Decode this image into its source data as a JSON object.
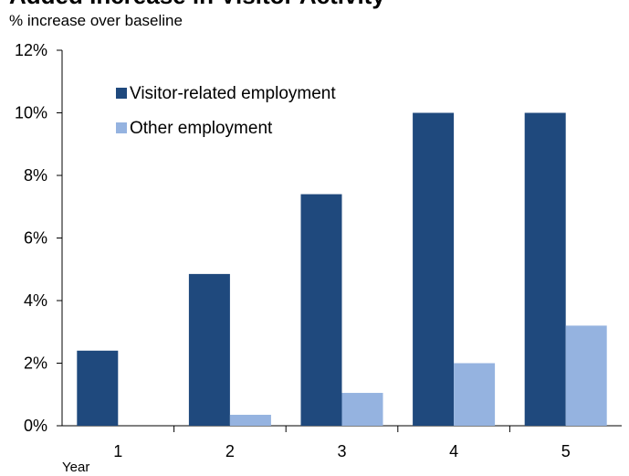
{
  "chart_data": {
    "type": "bar",
    "title": "Added Increase in Visitor Activity",
    "subtitle": "% increase over baseline",
    "xlabel": "Year",
    "ylabel": "",
    "categories": [
      "1",
      "2",
      "3",
      "4",
      "5"
    ],
    "ylim": [
      0,
      12
    ],
    "yticks": [
      0,
      2,
      4,
      6,
      8,
      10,
      12
    ],
    "ytick_labels": [
      "0%",
      "2%",
      "4%",
      "6%",
      "8%",
      "10%",
      "12%"
    ],
    "grid": false,
    "legend_placement": "top-left",
    "series": [
      {
        "name": "Visitor-related employment",
        "color": "#1f497d",
        "values": [
          2.4,
          4.85,
          7.4,
          10.0,
          10.0
        ]
      },
      {
        "name": "Other employment",
        "color": "#95b3e0",
        "values": [
          0.0,
          0.35,
          1.05,
          2.0,
          3.2
        ]
      }
    ]
  }
}
